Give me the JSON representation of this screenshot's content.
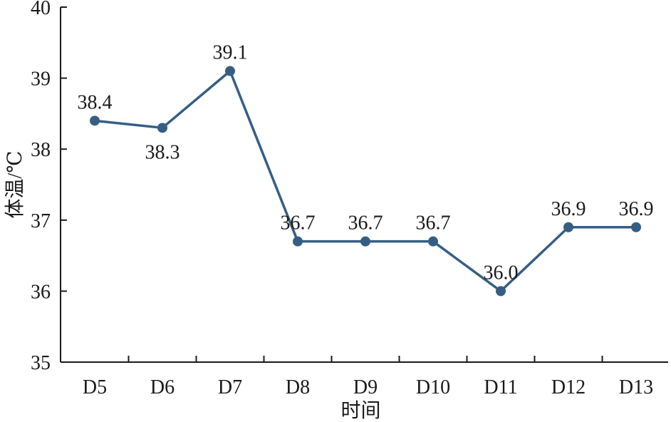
{
  "chart_data": {
    "type": "line",
    "categories": [
      "D5",
      "D6",
      "D7",
      "D8",
      "D9",
      "D10",
      "D11",
      "D12",
      "D13"
    ],
    "series": [
      {
        "values": [
          38.4,
          38.3,
          39.1,
          36.7,
          36.7,
          36.7,
          36.0,
          36.9,
          36.9
        ],
        "data_labels": [
          "38.4",
          "38.3",
          "39.1",
          "36.7",
          "36.7",
          "36.7",
          "36.0",
          "36.9",
          "36.9"
        ],
        "label_placement": [
          "above",
          "below",
          "above",
          "above",
          "above",
          "above",
          "above",
          "above",
          "above"
        ],
        "color": "#355e85"
      }
    ],
    "xlabel": "时间",
    "ylabel": "体温/℃",
    "ylim": [
      35,
      40
    ],
    "yticks": [
      "35",
      "36",
      "37",
      "38",
      "39",
      "40"
    ],
    "grid": false,
    "legend": "none"
  }
}
